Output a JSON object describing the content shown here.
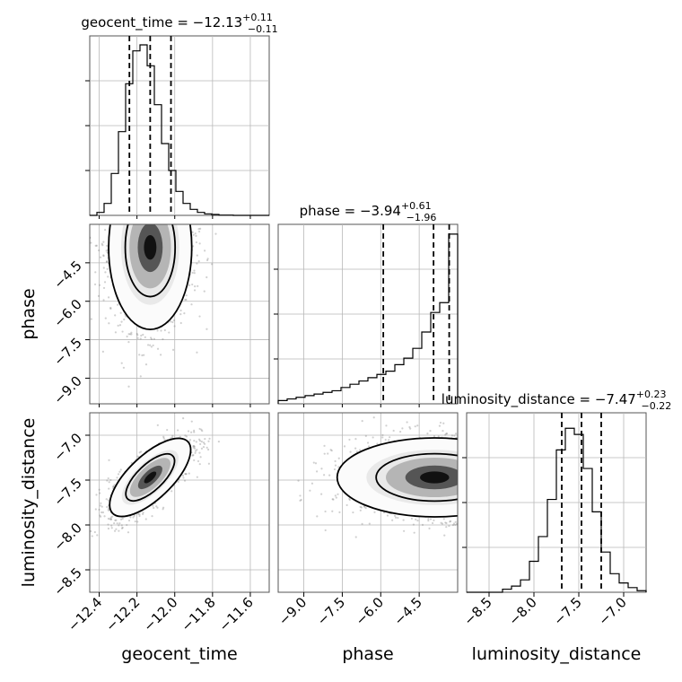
{
  "chart_data": {
    "type": "corner",
    "parameters": [
      {
        "name": "geocent_time",
        "xlabel": "geocent_time",
        "range": [
          -12.45,
          -11.5
        ],
        "ticks": [
          "-12.4",
          "-12.2",
          "-12.0",
          "-11.8",
          "-11.6"
        ],
        "tick_values": [
          -12.4,
          -12.2,
          -12.0,
          -11.8,
          -11.6
        ],
        "title": {
          "text": "geocent_time = −12.13",
          "plus": "+0.11",
          "minus": "−0.11"
        },
        "quantiles": [
          -12.24,
          -12.13,
          -12.02
        ],
        "hist": {
          "edges_start": -12.45,
          "bin_width": 0.038,
          "counts": [
            0,
            1,
            4,
            14,
            28,
            44,
            55,
            57,
            50,
            37,
            24,
            15,
            8,
            4,
            2,
            1,
            0.5,
            0.3,
            0.1,
            0.1,
            0,
            0,
            0,
            0,
            0
          ]
        },
        "hist_max": 60
      },
      {
        "name": "phase",
        "xlabel": "phase",
        "ylabel": "phase",
        "range": [
          -10.0,
          -3.0
        ],
        "ticks": [
          "-9.0",
          "-7.5",
          "-6.0",
          "-4.5"
        ],
        "tick_values": [
          -9.0,
          -7.5,
          -6.0,
          -4.5
        ],
        "title": {
          "text": "phase = −3.94",
          "plus": "+0.61",
          "minus": "−1.96"
        },
        "quantiles": [
          -5.9,
          -3.94,
          -3.33
        ],
        "hist": {
          "edges_start": -10.0,
          "bin_width": 0.35,
          "counts": [
            1,
            1.5,
            2,
            2.5,
            3,
            3.5,
            4,
            5,
            6,
            7,
            8,
            9,
            10,
            12,
            14,
            17,
            22,
            28,
            31,
            52
          ]
        },
        "hist_max": 55
      },
      {
        "name": "luminosity_distance",
        "xlabel": "luminosity_distance",
        "ylabel": "luminosity_distance",
        "range": [
          -8.75,
          -6.75
        ],
        "ticks": [
          "-8.5",
          "-8.0",
          "-7.5",
          "-7.0"
        ],
        "tick_values": [
          -8.5,
          -8.0,
          -7.5,
          -7.0
        ],
        "title": {
          "text": "luminosity_distance = −7.47",
          "plus": "+0.23",
          "minus": "−0.22"
        },
        "quantiles": [
          -7.69,
          -7.47,
          -7.25
        ],
        "hist": {
          "edges_start": -8.75,
          "bin_width": 0.1,
          "counts": [
            0,
            0,
            0,
            0,
            1,
            2,
            4,
            10,
            18,
            30,
            46,
            53,
            51,
            40,
            26,
            13,
            6,
            3,
            1.5,
            0.5
          ]
        },
        "hist_max": 58
      }
    ],
    "pairs": [
      {
        "row": 1,
        "col": 0,
        "mean": [
          -12.13,
          -3.9
        ],
        "sd": [
          0.11,
          1.6
        ],
        "rho": 0.0,
        "trunc_y": -3.0
      },
      {
        "row": 2,
        "col": 0,
        "mean": [
          -12.13,
          -7.47
        ],
        "sd": [
          0.11,
          0.22
        ],
        "rho": 0.75,
        "trunc_y": null
      },
      {
        "row": 2,
        "col": 1,
        "mean": [
          -3.9,
          -7.47
        ],
        "sd": [
          1.9,
          0.22
        ],
        "rho": 0.0,
        "trunc_x": -3.0
      }
    ]
  }
}
